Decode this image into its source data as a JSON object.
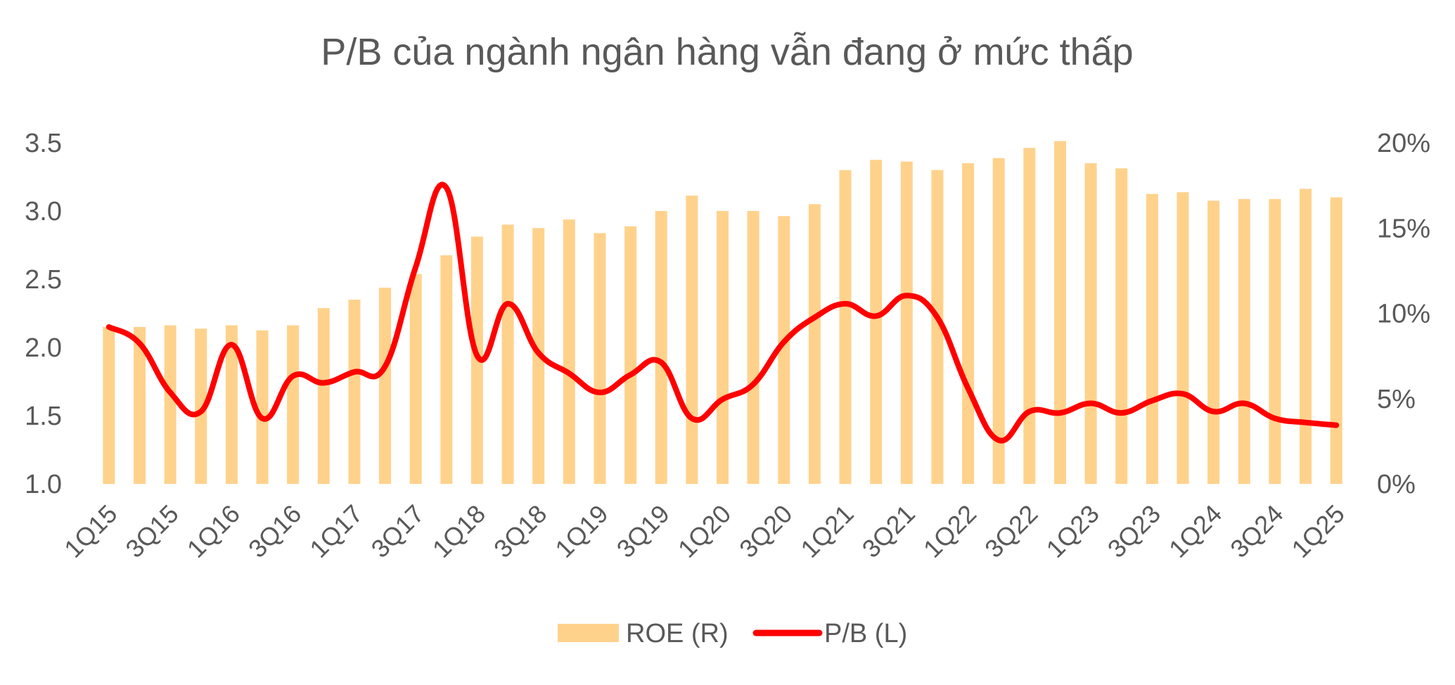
{
  "chart_data": {
    "type": "bar+line",
    "title": "P/B của ngành ngân hàng vẫn đang ở mức thấp",
    "categories": [
      "1Q15",
      "2Q15",
      "3Q15",
      "4Q15",
      "1Q16",
      "2Q16",
      "3Q16",
      "4Q16",
      "1Q17",
      "2Q17",
      "3Q17",
      "4Q17",
      "1Q18",
      "2Q18",
      "3Q18",
      "4Q18",
      "1Q19",
      "2Q19",
      "3Q19",
      "4Q19",
      "1Q20",
      "2Q20",
      "3Q20",
      "4Q20",
      "1Q21",
      "2Q21",
      "3Q21",
      "4Q21",
      "1Q22",
      "2Q22",
      "3Q22",
      "4Q22",
      "1Q23",
      "2Q23",
      "3Q23",
      "4Q23",
      "1Q24",
      "2Q24",
      "3Q24",
      "4Q24",
      "1Q25"
    ],
    "x_tick_labels": [
      "1Q15",
      "3Q15",
      "1Q16",
      "3Q16",
      "1Q17",
      "3Q17",
      "1Q18",
      "3Q18",
      "1Q19",
      "3Q19",
      "1Q20",
      "3Q20",
      "1Q21",
      "3Q21",
      "1Q22",
      "3Q22",
      "1Q23",
      "3Q23",
      "1Q24",
      "3Q24",
      "1Q25"
    ],
    "left_axis": {
      "ylim": [
        1.0,
        3.5
      ],
      "ticks": [
        "1.0",
        "1.5",
        "2.0",
        "2.5",
        "3.0",
        "3.5"
      ]
    },
    "right_axis": {
      "ylim": [
        0,
        20
      ],
      "ticks": [
        "0%",
        "5%",
        "10%",
        "15%",
        "20%"
      ]
    },
    "series": [
      {
        "name": "ROE (R)",
        "type": "bar",
        "axis": "right",
        "color": "#FFD28C",
        "unit": "%",
        "values": [
          9.2,
          9.2,
          9.3,
          9.1,
          9.3,
          9.0,
          9.3,
          10.3,
          10.8,
          11.5,
          12.3,
          13.4,
          14.5,
          15.2,
          15.0,
          15.5,
          14.7,
          15.1,
          16.0,
          16.9,
          16.0,
          16.0,
          15.7,
          16.4,
          18.4,
          19.0,
          18.9,
          18.4,
          18.8,
          19.1,
          19.7,
          20.1,
          18.8,
          18.5,
          17.0,
          17.1,
          16.6,
          16.7,
          16.7,
          17.3,
          16.8
        ]
      },
      {
        "name": "P/B (L)",
        "type": "line",
        "axis": "left",
        "color": "#FF0000",
        "values": [
          2.15,
          2.03,
          1.67,
          1.53,
          2.02,
          1.48,
          1.79,
          1.74,
          1.82,
          1.86,
          2.59,
          3.17,
          1.94,
          2.32,
          1.96,
          1.81,
          1.67,
          1.8,
          1.89,
          1.48,
          1.62,
          1.73,
          2.04,
          2.22,
          2.32,
          2.23,
          2.38,
          2.22,
          1.7,
          1.32,
          1.53,
          1.52,
          1.59,
          1.52,
          1.61,
          1.66,
          1.53,
          1.59,
          1.48,
          1.45,
          1.43
        ]
      }
    ],
    "legend": {
      "position": "bottom",
      "items": [
        "ROE (R)",
        "P/B (L)"
      ]
    },
    "grid": false
  }
}
